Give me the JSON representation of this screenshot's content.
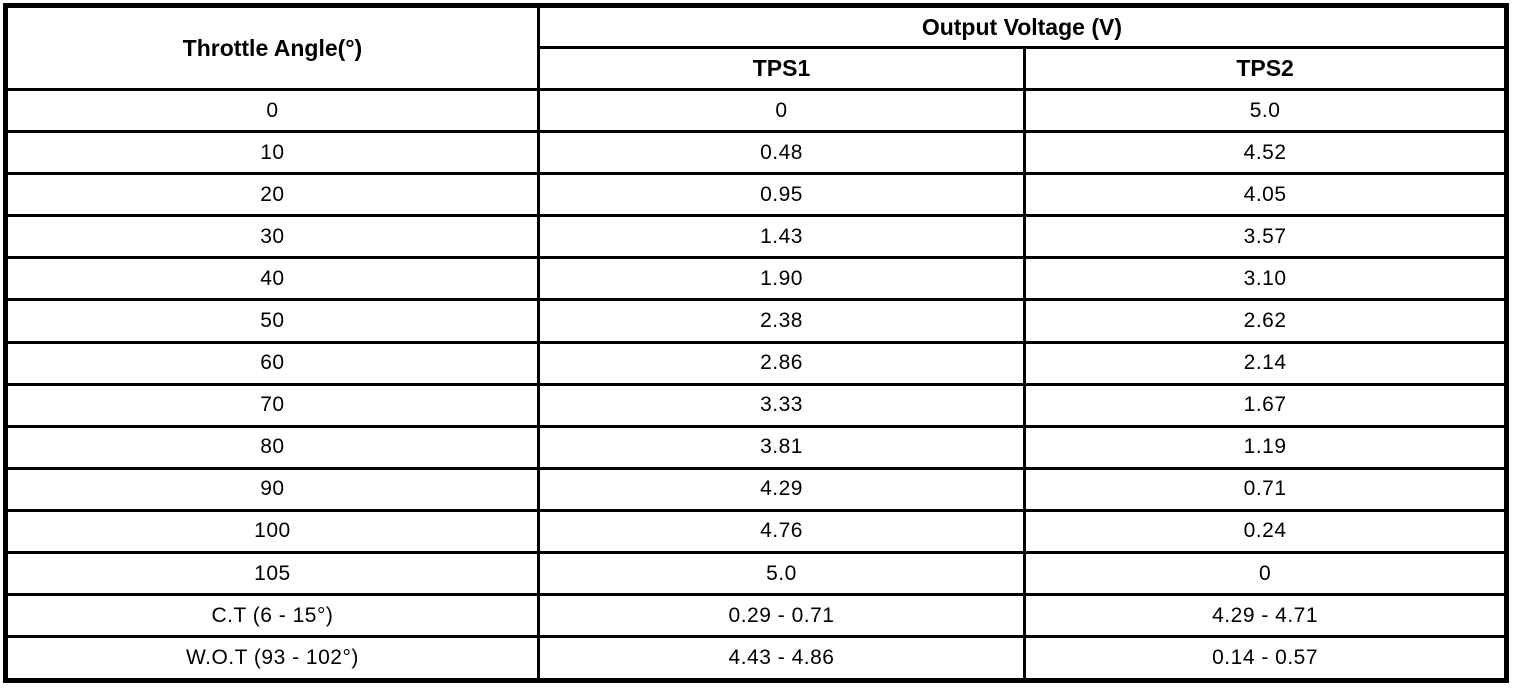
{
  "table": {
    "col1_header": "Throttle Angle(°)",
    "group_header": "Output Voltage (V)",
    "sub_headers": [
      "TPS1",
      "TPS2"
    ],
    "rows": [
      {
        "angle": "0",
        "tps1": "0",
        "tps2": "5.0"
      },
      {
        "angle": "10",
        "tps1": "0.48",
        "tps2": "4.52"
      },
      {
        "angle": "20",
        "tps1": "0.95",
        "tps2": "4.05"
      },
      {
        "angle": "30",
        "tps1": "1.43",
        "tps2": "3.57"
      },
      {
        "angle": "40",
        "tps1": "1.90",
        "tps2": "3.10"
      },
      {
        "angle": "50",
        "tps1": "2.38",
        "tps2": "2.62"
      },
      {
        "angle": "60",
        "tps1": "2.86",
        "tps2": "2.14"
      },
      {
        "angle": "70",
        "tps1": "3.33",
        "tps2": "1.67"
      },
      {
        "angle": "80",
        "tps1": "3.81",
        "tps2": "1.19"
      },
      {
        "angle": "90",
        "tps1": "4.29",
        "tps2": "0.71"
      },
      {
        "angle": "100",
        "tps1": "4.76",
        "tps2": "0.24"
      },
      {
        "angle": "105",
        "tps1": "5.0",
        "tps2": "0"
      },
      {
        "angle": "C.T (6 - 15°)",
        "tps1": "0.29 - 0.71",
        "tps2": "4.29 - 4.71"
      },
      {
        "angle": "W.O.T (93 - 102°)",
        "tps1": "4.43 - 4.86",
        "tps2": "0.14 - 0.57"
      }
    ]
  },
  "colors": {
    "border": "#000000",
    "background": "#ffffff",
    "text": "#000000"
  },
  "chart_data": {
    "type": "table",
    "columns": [
      "Throttle Angle(°)",
      "Output Voltage (V) TPS1",
      "Output Voltage (V) TPS2"
    ],
    "rows": [
      [
        "0",
        "0",
        "5.0"
      ],
      [
        "10",
        "0.48",
        "4.52"
      ],
      [
        "20",
        "0.95",
        "4.05"
      ],
      [
        "30",
        "1.43",
        "3.57"
      ],
      [
        "40",
        "1.90",
        "3.10"
      ],
      [
        "50",
        "2.38",
        "2.62"
      ],
      [
        "60",
        "2.86",
        "2.14"
      ],
      [
        "70",
        "3.33",
        "1.67"
      ],
      [
        "80",
        "3.81",
        "1.19"
      ],
      [
        "90",
        "4.29",
        "0.71"
      ],
      [
        "100",
        "4.76",
        "0.24"
      ],
      [
        "105",
        "5.0",
        "0"
      ],
      [
        "C.T (6 - 15°)",
        "0.29 - 0.71",
        "4.29 - 4.71"
      ],
      [
        "W.O.T (93 - 102°)",
        "4.43 - 4.86",
        "0.14 - 0.57"
      ]
    ]
  }
}
